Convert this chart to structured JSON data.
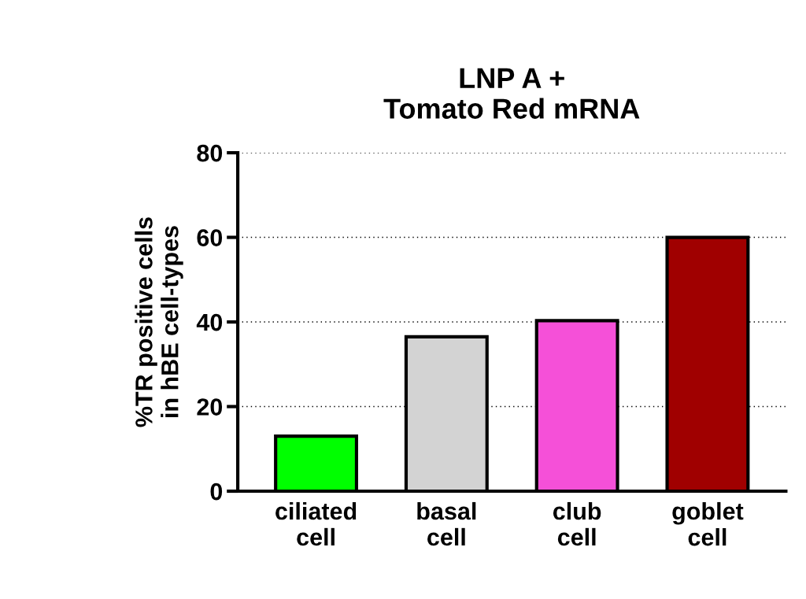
{
  "chart_data": {
    "type": "bar",
    "title": "LNP A +\nTomato Red mRNA",
    "ylabel": "%TR positive cells\nin hBE cell-types",
    "categories": [
      "ciliated\ncell",
      "basal\ncell",
      "club\ncell",
      "goblet\ncell"
    ],
    "values": [
      13,
      36.5,
      40.3,
      60
    ],
    "colors": [
      "#00ff00",
      "#d3d3d3",
      "#f550d8",
      "#a00000"
    ],
    "ylim": [
      0,
      80
    ],
    "yticks": [
      0,
      20,
      40,
      60,
      80
    ],
    "grid": "y"
  }
}
